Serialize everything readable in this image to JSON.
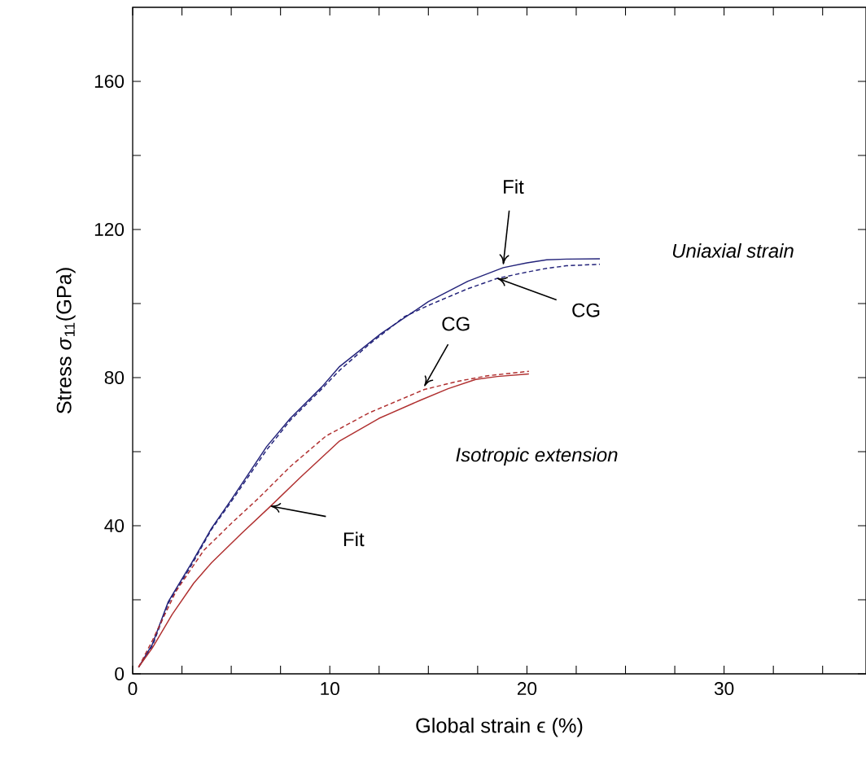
{
  "chart_data": {
    "type": "line",
    "xlabel": "Global strain ϵ (%)",
    "ylabel": "Stress *σ*$_{11}$(GPa)",
    "xlim": [
      0,
      37.2
    ],
    "ylim": [
      0,
      180
    ],
    "xticks": [
      0,
      {
        "value": 2.5,
        "label": null
      },
      {
        "value": 5,
        "label": null
      },
      {
        "value": 7.5,
        "label": null
      },
      10,
      {
        "value": 12.5,
        "label": null
      },
      {
        "value": 15,
        "label": null
      },
      {
        "value": 17.5,
        "label": null
      },
      20,
      {
        "value": 22.5,
        "label": null
      },
      {
        "value": 25,
        "label": null
      },
      {
        "value": 27.5,
        "label": null
      },
      30,
      {
        "value": 32.5,
        "label": null
      },
      {
        "value": 35,
        "label": null
      }
    ],
    "yticks": [
      0,
      {
        "value": 20,
        "label": null
      },
      40,
      {
        "value": 60,
        "label": null
      },
      80,
      {
        "value": 100,
        "label": null
      },
      120,
      {
        "value": 140,
        "label": null
      },
      160
    ],
    "series": [
      {
        "color": "#23237a",
        "line_style": "solid",
        "x": [
          0.3,
          1,
          1.8,
          3,
          4,
          5,
          6.8,
          8,
          9.6,
          10.5,
          12.6,
          15,
          17,
          18.8,
          20,
          21,
          22,
          23.7
        ],
        "values": [
          1.8,
          8,
          19.4,
          30,
          39.3,
          47,
          61.4,
          69,
          77.5,
          83,
          91.9,
          100.5,
          106,
          109.7,
          111,
          111.8,
          112,
          112.1
        ]
      },
      {
        "color": "#23237a",
        "line_style": "dashed",
        "x": [
          0.3,
          1,
          1.8,
          3,
          4,
          5,
          6.8,
          8,
          9.6,
          10.5,
          12,
          13.8,
          15,
          17,
          18.5,
          20,
          21,
          22,
          23.7
        ],
        "values": [
          1.8,
          7.5,
          19,
          29.5,
          39,
          46.5,
          60.5,
          68.5,
          77,
          82,
          89,
          96.5,
          99.5,
          104,
          106.8,
          108.5,
          109.5,
          110.2,
          110.6
        ]
      },
      {
        "color": "#b03030",
        "line_style": "solid",
        "x": [
          0.3,
          1,
          2,
          3.1,
          4,
          5.5,
          7,
          8.5,
          10.5,
          12.5,
          14.6,
          16,
          17.4,
          18.5,
          20.1
        ],
        "values": [
          1.8,
          7,
          16,
          24.5,
          30,
          37.8,
          45.3,
          53,
          62.9,
          69,
          73.9,
          77,
          79.5,
          80.3,
          81.0
        ]
      },
      {
        "color": "#b03030",
        "line_style": "dashed",
        "x": [
          0.3,
          1,
          2.2,
          3.6,
          5,
          6.4,
          8,
          9.8,
          12,
          14.8,
          16.5,
          18,
          20.1
        ],
        "values": [
          1.8,
          9,
          22.3,
          33.3,
          40.6,
          47.5,
          56,
          64.2,
          70.5,
          76.8,
          79,
          80.5,
          81.7
        ]
      }
    ],
    "annotations": [
      {
        "text": "Fit",
        "x": 18.8,
        "y": 110.6
      },
      {
        "text": "CG",
        "x": 18.5,
        "y": 106.8
      },
      {
        "text": "CG",
        "x": 14.8,
        "y": 77.7
      },
      {
        "text": "Fit",
        "x": 7.0,
        "y": 45.3
      },
      "Uniaxial strain",
      "Isotropic extension"
    ]
  }
}
